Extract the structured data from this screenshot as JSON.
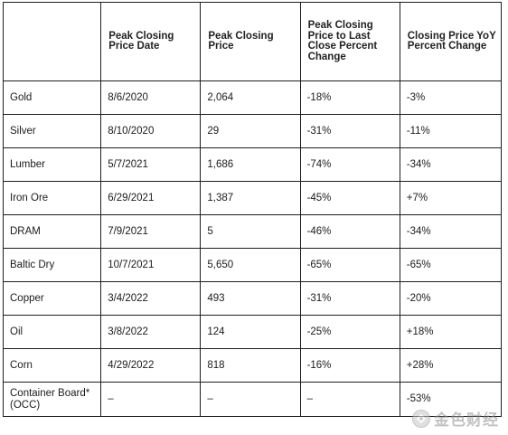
{
  "headers": [
    "",
    "Peak Closing Price Date",
    "Peak Closing Price",
    "Peak Closing Price to Last Close Percent Change",
    "Closing Price YoY Percent Change"
  ],
  "rows": [
    [
      "Gold",
      "8/6/2020",
      "2,064",
      "-18%",
      "-3%"
    ],
    [
      "Silver",
      "8/10/2020",
      "29",
      "-31%",
      "-11%"
    ],
    [
      "Lumber",
      "5/7/2021",
      "1,686",
      "-74%",
      "-34%"
    ],
    [
      "Iron Ore",
      "6/29/2021",
      "1,387",
      "-45%",
      "+7%"
    ],
    [
      "DRAM",
      "7/9/2021",
      "5",
      "-46%",
      "-34%"
    ],
    [
      "Baltic Dry",
      "10/7/2021",
      "5,650",
      "-65%",
      "-65%"
    ],
    [
      "Copper",
      "3/4/2022",
      "493",
      "-31%",
      "-20%"
    ],
    [
      "Oil",
      "3/8/2022",
      "124",
      "-25%",
      "+18%"
    ],
    [
      "Corn",
      "4/29/2022",
      "818",
      "-16%",
      "+28%"
    ],
    [
      "Container Board* (OCC)",
      "–",
      "–",
      "–",
      "-53%"
    ]
  ],
  "watermark": {
    "text": "金色财经",
    "icon": "diamond-logo-icon"
  }
}
